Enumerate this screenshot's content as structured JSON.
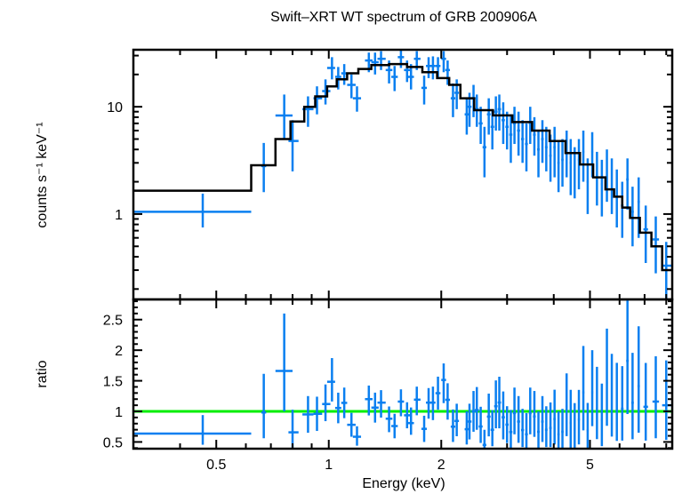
{
  "chart_data": [
    {
      "panel": "spectrum",
      "type": "scatter",
      "title": "Swift–XRT WT spectrum of GRB 200906A",
      "xlabel": "Energy (keV)",
      "ylabel": "counts s⁻¹ keV⁻¹",
      "xscale": "log",
      "yscale": "log",
      "xlim": [
        0.3,
        8.3
      ],
      "ylim": [
        0.16,
        34
      ],
      "ytick_labels": [
        {
          "v": 1,
          "label": "1"
        },
        {
          "v": 10,
          "label": "10"
        }
      ],
      "grid": false,
      "colors": {
        "data": "#0a7ff0",
        "model": "#000000"
      },
      "model_steps": [
        {
          "e0": 0.3,
          "e1": 0.62,
          "v": 1.65
        },
        {
          "e0": 0.62,
          "e1": 0.72,
          "v": 2.85
        },
        {
          "e0": 0.72,
          "e1": 0.79,
          "v": 5.0
        },
        {
          "e0": 0.79,
          "e1": 0.86,
          "v": 7.3
        },
        {
          "e0": 0.86,
          "e1": 0.92,
          "v": 10.0
        },
        {
          "e0": 0.92,
          "e1": 0.99,
          "v": 12.5
        },
        {
          "e0": 0.99,
          "e1": 1.05,
          "v": 15.5
        },
        {
          "e0": 1.05,
          "e1": 1.12,
          "v": 18.0
        },
        {
          "e0": 1.12,
          "e1": 1.2,
          "v": 20.5
        },
        {
          "e0": 1.2,
          "e1": 1.3,
          "v": 22.5
        },
        {
          "e0": 1.3,
          "e1": 1.45,
          "v": 24.5
        },
        {
          "e0": 1.45,
          "e1": 1.62,
          "v": 25.0
        },
        {
          "e0": 1.62,
          "e1": 1.78,
          "v": 23.5
        },
        {
          "e0": 1.78,
          "e1": 1.95,
          "v": 21.0
        },
        {
          "e0": 1.95,
          "e1": 2.1,
          "v": 18.5
        },
        {
          "e0": 2.1,
          "e1": 2.25,
          "v": 16.0
        },
        {
          "e0": 2.25,
          "e1": 2.45,
          "v": 12.0
        },
        {
          "e0": 2.45,
          "e1": 2.75,
          "v": 9.3
        },
        {
          "e0": 2.75,
          "e1": 3.1,
          "v": 8.3
        },
        {
          "e0": 3.1,
          "e1": 3.5,
          "v": 7.2
        },
        {
          "e0": 3.5,
          "e1": 3.9,
          "v": 6.0
        },
        {
          "e0": 3.9,
          "e1": 4.3,
          "v": 4.8
        },
        {
          "e0": 4.3,
          "e1": 4.7,
          "v": 3.7
        },
        {
          "e0": 4.7,
          "e1": 5.1,
          "v": 2.9
        },
        {
          "e0": 5.1,
          "e1": 5.5,
          "v": 2.2
        },
        {
          "e0": 5.5,
          "e1": 5.8,
          "v": 1.7
        },
        {
          "e0": 5.8,
          "e1": 6.1,
          "v": 1.45
        },
        {
          "e0": 6.1,
          "e1": 6.4,
          "v": 1.15
        },
        {
          "e0": 6.4,
          "e1": 6.8,
          "v": 0.92
        },
        {
          "e0": 6.8,
          "e1": 7.3,
          "v": 0.67
        },
        {
          "e0": 7.3,
          "e1": 7.8,
          "v": 0.5
        },
        {
          "e0": 7.8,
          "e1": 8.3,
          "v": 0.3
        }
      ],
      "points": [
        {
          "e": 0.46,
          "e0": 0.3,
          "e1": 0.62,
          "v": 1.05,
          "lo": 0.75,
          "hi": 1.55
        },
        {
          "e": 0.67,
          "e0": 0.66,
          "e1": 0.68,
          "v": 2.8,
          "lo": 1.6,
          "hi": 4.6
        },
        {
          "e": 0.76,
          "e0": 0.72,
          "e1": 0.8,
          "v": 8.3,
          "lo": 5.0,
          "hi": 13.0
        },
        {
          "e": 0.8,
          "e0": 0.78,
          "e1": 0.83,
          "v": 4.8,
          "lo": 2.5,
          "hi": 7.5
        },
        {
          "e": 0.88,
          "e0": 0.85,
          "e1": 0.91,
          "v": 9.5,
          "lo": 6.5,
          "hi": 12.5
        },
        {
          "e": 0.93,
          "e0": 0.91,
          "e1": 0.96,
          "v": 12.0,
          "lo": 8.5,
          "hi": 15.5
        },
        {
          "e": 0.98,
          "e0": 0.96,
          "e1": 1.01,
          "v": 14.0,
          "lo": 10.5,
          "hi": 18.0
        },
        {
          "e": 1.02,
          "e0": 0.99,
          "e1": 1.04,
          "v": 23.0,
          "lo": 18.0,
          "hi": 29.0
        },
        {
          "e": 1.06,
          "e0": 1.04,
          "e1": 1.08,
          "v": 19.0,
          "lo": 14.5,
          "hi": 23.5
        },
        {
          "e": 1.1,
          "e0": 1.08,
          "e1": 1.12,
          "v": 20.5,
          "lo": 16.0,
          "hi": 25.0
        },
        {
          "e": 1.15,
          "e0": 1.12,
          "e1": 1.18,
          "v": 16.0,
          "lo": 12.0,
          "hi": 20.0
        },
        {
          "e": 1.19,
          "e0": 1.16,
          "e1": 1.22,
          "v": 12.0,
          "lo": 9.0,
          "hi": 15.5
        },
        {
          "e": 1.28,
          "e0": 1.25,
          "e1": 1.31,
          "v": 27.0,
          "lo": 21.0,
          "hi": 32.0
        },
        {
          "e": 1.33,
          "e0": 1.3,
          "e1": 1.36,
          "v": 26.0,
          "lo": 20.0,
          "hi": 32.0
        },
        {
          "e": 1.38,
          "e0": 1.35,
          "e1": 1.42,
          "v": 28.0,
          "lo": 22.0,
          "hi": 33.0
        },
        {
          "e": 1.45,
          "e0": 1.42,
          "e1": 1.48,
          "v": 22.0,
          "lo": 16.5,
          "hi": 27.0
        },
        {
          "e": 1.5,
          "e0": 1.47,
          "e1": 1.53,
          "v": 19.0,
          "lo": 14.0,
          "hi": 24.0
        },
        {
          "e": 1.56,
          "e0": 1.53,
          "e1": 1.59,
          "v": 29.0,
          "lo": 23.0,
          "hi": 34.0
        },
        {
          "e": 1.62,
          "e0": 1.59,
          "e1": 1.65,
          "v": 22.0,
          "lo": 17.0,
          "hi": 27.0
        },
        {
          "e": 1.66,
          "e0": 1.63,
          "e1": 1.69,
          "v": 19.0,
          "lo": 14.5,
          "hi": 25.0
        },
        {
          "e": 1.72,
          "e0": 1.69,
          "e1": 1.76,
          "v": 28.0,
          "lo": 22.0,
          "hi": 33.0
        },
        {
          "e": 1.8,
          "e0": 1.77,
          "e1": 1.83,
          "v": 15.0,
          "lo": 10.5,
          "hi": 19.5
        },
        {
          "e": 1.85,
          "e0": 1.82,
          "e1": 1.88,
          "v": 24.0,
          "lo": 18.5,
          "hi": 29.0
        },
        {
          "e": 1.9,
          "e0": 1.87,
          "e1": 1.93,
          "v": 24.0,
          "lo": 18.0,
          "hi": 29.5
        },
        {
          "e": 1.96,
          "e0": 1.93,
          "e1": 1.99,
          "v": 24.0,
          "lo": 19.0,
          "hi": 29.0
        },
        {
          "e": 2.03,
          "e0": 2.0,
          "e1": 2.06,
          "v": 28.0,
          "lo": 21.0,
          "hi": 33.0
        },
        {
          "e": 2.08,
          "e0": 2.05,
          "e1": 2.11,
          "v": 22.0,
          "lo": 16.0,
          "hi": 27.0
        },
        {
          "e": 2.15,
          "e0": 2.12,
          "e1": 2.18,
          "v": 12.0,
          "lo": 8.0,
          "hi": 16.5
        },
        {
          "e": 2.2,
          "e0": 2.17,
          "e1": 2.23,
          "v": 13.5,
          "lo": 9.5,
          "hi": 18.0
        },
        {
          "e": 2.34,
          "e0": 2.31,
          "e1": 2.37,
          "v": 8.5,
          "lo": 5.5,
          "hi": 12.0
        },
        {
          "e": 2.38,
          "e0": 2.35,
          "e1": 2.41,
          "v": 10.0,
          "lo": 6.5,
          "hi": 13.5
        },
        {
          "e": 2.44,
          "e0": 2.41,
          "e1": 2.47,
          "v": 12.0,
          "lo": 8.0,
          "hi": 16.0
        },
        {
          "e": 2.49,
          "e0": 2.46,
          "e1": 2.52,
          "v": 9.5,
          "lo": 6.5,
          "hi": 13.0
        },
        {
          "e": 2.55,
          "e0": 2.52,
          "e1": 2.58,
          "v": 7.0,
          "lo": 4.5,
          "hi": 10.0
        },
        {
          "e": 2.61,
          "e0": 2.58,
          "e1": 2.64,
          "v": 4.2,
          "lo": 2.2,
          "hi": 6.5
        },
        {
          "e": 2.68,
          "e0": 2.65,
          "e1": 2.71,
          "v": 8.5,
          "lo": 5.5,
          "hi": 12.0
        },
        {
          "e": 2.74,
          "e0": 2.71,
          "e1": 2.77,
          "v": 6.5,
          "lo": 4.0,
          "hi": 9.5
        },
        {
          "e": 2.8,
          "e0": 2.77,
          "e1": 2.83,
          "v": 9.0,
          "lo": 6.0,
          "hi": 12.5
        },
        {
          "e": 2.86,
          "e0": 2.83,
          "e1": 2.89,
          "v": 9.5,
          "lo": 6.0,
          "hi": 13.0
        },
        {
          "e": 2.93,
          "e0": 2.9,
          "e1": 2.96,
          "v": 7.5,
          "lo": 4.5,
          "hi": 11.0
        },
        {
          "e": 3.0,
          "e0": 2.97,
          "e1": 3.03,
          "v": 6.5,
          "lo": 4.0,
          "hi": 9.0
        },
        {
          "e": 3.07,
          "e0": 3.04,
          "e1": 3.1,
          "v": 5.5,
          "lo": 3.0,
          "hi": 8.5
        },
        {
          "e": 3.14,
          "e0": 3.11,
          "e1": 3.17,
          "v": 7.0,
          "lo": 4.5,
          "hi": 10.0
        },
        {
          "e": 3.22,
          "e0": 3.19,
          "e1": 3.25,
          "v": 6.0,
          "lo": 3.5,
          "hi": 9.0
        },
        {
          "e": 3.3,
          "e0": 3.27,
          "e1": 3.33,
          "v": 5.0,
          "lo": 3.0,
          "hi": 7.5
        },
        {
          "e": 3.38,
          "e0": 3.35,
          "e1": 3.41,
          "v": 4.5,
          "lo": 2.5,
          "hi": 7.0
        },
        {
          "e": 3.46,
          "e0": 3.43,
          "e1": 3.49,
          "v": 7.0,
          "lo": 4.5,
          "hi": 10.0
        },
        {
          "e": 3.55,
          "e0": 3.52,
          "e1": 3.58,
          "v": 5.5,
          "lo": 3.5,
          "hi": 8.0
        },
        {
          "e": 3.64,
          "e0": 3.61,
          "e1": 3.67,
          "v": 4.0,
          "lo": 2.2,
          "hi": 6.0
        },
        {
          "e": 3.73,
          "e0": 3.7,
          "e1": 3.76,
          "v": 5.0,
          "lo": 3.0,
          "hi": 7.5
        },
        {
          "e": 3.82,
          "e0": 3.79,
          "e1": 3.85,
          "v": 4.2,
          "lo": 2.5,
          "hi": 6.5
        },
        {
          "e": 3.92,
          "e0": 3.89,
          "e1": 3.95,
          "v": 3.5,
          "lo": 2.0,
          "hi": 5.5
        },
        {
          "e": 4.02,
          "e0": 3.99,
          "e1": 4.05,
          "v": 4.2,
          "lo": 2.2,
          "hi": 6.5
        },
        {
          "e": 4.12,
          "e0": 4.09,
          "e1": 4.15,
          "v": 3.0,
          "lo": 1.6,
          "hi": 4.8
        },
        {
          "e": 4.22,
          "e0": 4.19,
          "e1": 4.25,
          "v": 3.2,
          "lo": 1.8,
          "hi": 5.0
        },
        {
          "e": 4.33,
          "e0": 4.3,
          "e1": 4.36,
          "v": 4.0,
          "lo": 2.2,
          "hi": 6.0
        },
        {
          "e": 4.44,
          "e0": 4.41,
          "e1": 4.47,
          "v": 3.0,
          "lo": 1.5,
          "hi": 5.0
        },
        {
          "e": 4.55,
          "e0": 4.52,
          "e1": 4.58,
          "v": 2.6,
          "lo": 1.4,
          "hi": 4.2
        },
        {
          "e": 4.67,
          "e0": 4.64,
          "e1": 4.7,
          "v": 3.2,
          "lo": 1.7,
          "hi": 5.0
        },
        {
          "e": 4.8,
          "e0": 4.77,
          "e1": 4.83,
          "v": 3.8,
          "lo": 2.0,
          "hi": 6.0
        },
        {
          "e": 4.93,
          "e0": 4.9,
          "e1": 4.96,
          "v": 2.0,
          "lo": 1.0,
          "hi": 3.3
        },
        {
          "e": 5.07,
          "e0": 5.04,
          "e1": 5.1,
          "v": 3.8,
          "lo": 2.2,
          "hi": 5.8
        },
        {
          "e": 5.22,
          "e0": 5.19,
          "e1": 5.25,
          "v": 2.3,
          "lo": 1.2,
          "hi": 3.8
        },
        {
          "e": 5.38,
          "e0": 5.35,
          "e1": 5.41,
          "v": 1.9,
          "lo": 0.95,
          "hi": 3.2
        },
        {
          "e": 5.55,
          "e0": 5.52,
          "e1": 5.58,
          "v": 2.5,
          "lo": 1.3,
          "hi": 4.0
        },
        {
          "e": 5.72,
          "e0": 5.69,
          "e1": 5.75,
          "v": 2.0,
          "lo": 1.0,
          "hi": 3.3
        },
        {
          "e": 5.9,
          "e0": 5.87,
          "e1": 5.93,
          "v": 1.5,
          "lo": 0.75,
          "hi": 2.6
        },
        {
          "e": 6.1,
          "e0": 6.05,
          "e1": 6.15,
          "v": 1.2,
          "lo": 0.6,
          "hi": 2.0
        },
        {
          "e": 6.3,
          "e0": 6.25,
          "e1": 6.35,
          "v": 2.1,
          "lo": 1.1,
          "hi": 3.3
        },
        {
          "e": 6.5,
          "e0": 6.45,
          "e1": 6.55,
          "v": 1.05,
          "lo": 0.5,
          "hi": 1.8
        },
        {
          "e": 6.75,
          "e0": 6.7,
          "e1": 6.8,
          "v": 1.3,
          "lo": 0.6,
          "hi": 2.2
        },
        {
          "e": 7.05,
          "e0": 6.95,
          "e1": 7.15,
          "v": 0.72,
          "lo": 0.35,
          "hi": 1.2
        },
        {
          "e": 7.5,
          "e0": 7.35,
          "e1": 7.65,
          "v": 0.58,
          "lo": 0.28,
          "hi": 0.95
        },
        {
          "e": 8.0,
          "e0": 7.8,
          "e1": 8.3,
          "v": 0.33,
          "lo": 0.16,
          "hi": 0.55
        }
      ]
    },
    {
      "panel": "ratio",
      "type": "scatter",
      "xlabel": "Energy (keV)",
      "ylabel": "ratio",
      "xscale": "log",
      "yscale": "linear",
      "xlim": [
        0.3,
        8.3
      ],
      "ylim": [
        0.39,
        2.83
      ],
      "xtick_labels": [
        {
          "v": 0.5,
          "label": "0.5"
        },
        {
          "v": 1,
          "label": "1"
        },
        {
          "v": 2,
          "label": "2"
        },
        {
          "v": 5,
          "label": "5"
        }
      ],
      "ytick_labels": [
        {
          "v": 0.5,
          "label": "0.5"
        },
        {
          "v": 1,
          "label": "1"
        },
        {
          "v": 1.5,
          "label": "1.5"
        },
        {
          "v": 2,
          "label": "2"
        },
        {
          "v": 2.5,
          "label": "2.5"
        }
      ],
      "reference_line": 1,
      "grid": false,
      "colors": {
        "data": "#0a7ff0",
        "reference": "#00ee00"
      }
    }
  ]
}
